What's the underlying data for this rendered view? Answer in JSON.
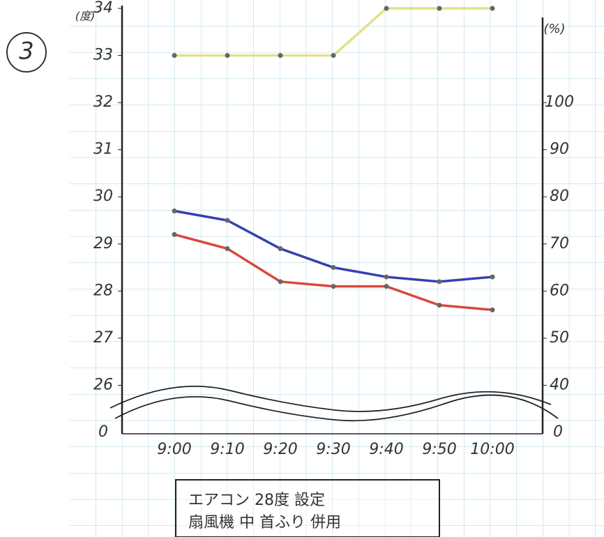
{
  "chart_data": {
    "type": "line",
    "panel_label": "3",
    "y_label": "(度)",
    "y2_label": "(%)",
    "y_origin_label": "0",
    "y2_origin_label": "0",
    "categories": [
      "9:00",
      "9:10",
      "9:20",
      "9:30",
      "9:40",
      "9:50",
      "10:00"
    ],
    "series": [
      {
        "color": "#e2e08a",
        "values": [
          33,
          33,
          33,
          33,
          34,
          34,
          34
        ]
      },
      {
        "color": "#d9483b",
        "values": [
          29.2,
          28.9,
          28.2,
          28.1,
          28.1,
          27.7,
          27.6
        ]
      },
      {
        "color": "#3540b0",
        "axis": "y2",
        "values": [
          77,
          75,
          69,
          65,
          63,
          62,
          63
        ]
      }
    ],
    "ylim": [
      25,
      34
    ],
    "yticks": [
      26,
      27,
      28,
      29,
      30,
      31,
      32,
      33,
      34
    ],
    "y2lim": [
      30,
      120
    ],
    "y2ticks": [
      40,
      50,
      60,
      70,
      80,
      90,
      100
    ],
    "grid": true,
    "note": [
      "エアコン 28度 設定",
      "扇風機 中 首ふり 併用"
    ]
  }
}
